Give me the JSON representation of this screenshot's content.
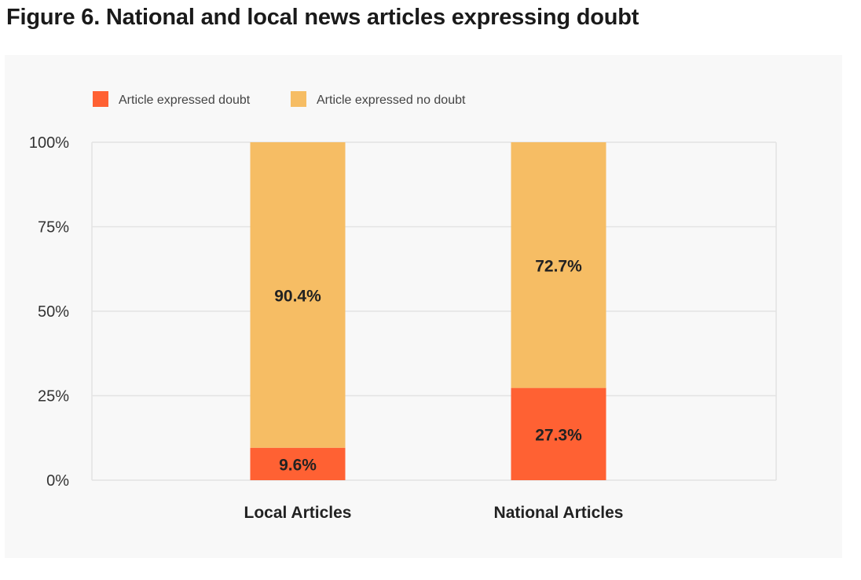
{
  "figure": {
    "title": "Figure 6. National and local news articles expressing doubt"
  },
  "chart_data": {
    "type": "bar",
    "stacked": true,
    "categories": [
      "Local Articles",
      "National Articles"
    ],
    "series": [
      {
        "name": "Article expressed doubt",
        "color": "#ff6133",
        "values": [
          9.6,
          27.3
        ],
        "labels": [
          "9.6%",
          "27.3%"
        ]
      },
      {
        "name": "Article expressed no doubt",
        "color": "#f6bd64",
        "values": [
          90.4,
          72.7
        ],
        "labels": [
          "90.4%",
          "72.7%"
        ]
      }
    ],
    "ylim": [
      0,
      100
    ],
    "yticks": [
      "0%",
      "25%",
      "50%",
      "75%",
      "100%"
    ],
    "ytick_values": [
      0,
      25,
      50,
      75,
      100
    ],
    "grid": true,
    "legend_position": "top-left",
    "title": "",
    "xlabel": "",
    "ylabel": ""
  }
}
